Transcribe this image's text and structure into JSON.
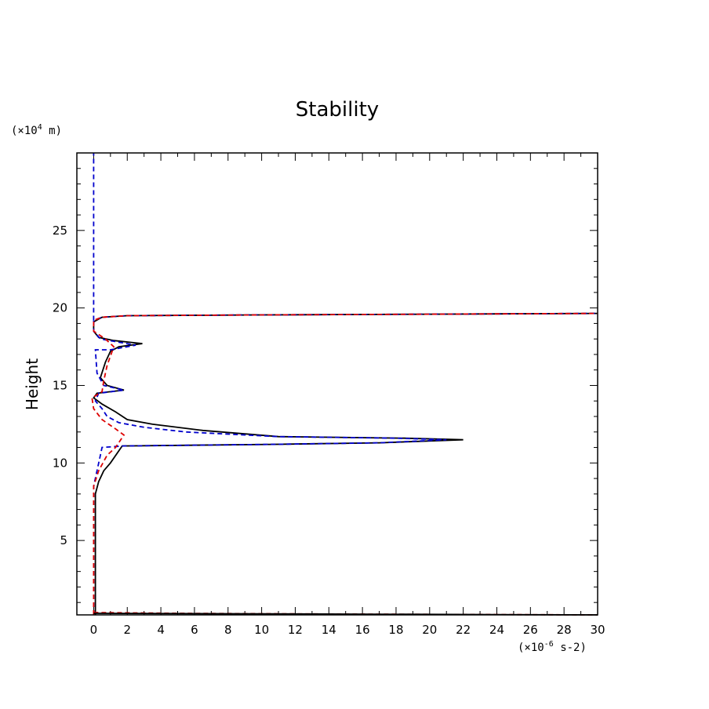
{
  "chart_data": {
    "type": "line",
    "title": "Stability",
    "xlabel": "",
    "ylabel": "Height",
    "x_unit_label": "(×10",
    "x_unit_exp": "-6",
    "x_unit_suffix": " s-2)",
    "y_unit_label": "(×10",
    "y_unit_exp": "4",
    "y_unit_suffix": " m)",
    "xlim": [
      -1,
      30
    ],
    "ylim": [
      0.2,
      30
    ],
    "x_ticks": [
      0,
      2,
      4,
      6,
      8,
      10,
      12,
      14,
      16,
      18,
      20,
      22,
      24,
      26,
      28,
      30
    ],
    "y_ticks": [
      5,
      10,
      15,
      20,
      25
    ],
    "grid": false,
    "colors": {
      "black": "#000000",
      "blue": "#0000cc",
      "red": "#dd0000"
    },
    "series": [
      {
        "color": "#000000",
        "dash": "solid",
        "points": [
          [
            0.1,
            0.2
          ],
          [
            0.1,
            8.0
          ],
          [
            0.3,
            8.8
          ],
          [
            0.6,
            9.5
          ],
          [
            1.0,
            10.0
          ],
          [
            1.7,
            11.1
          ],
          [
            10.5,
            11.2
          ],
          [
            17.0,
            11.3
          ],
          [
            22.0,
            11.5
          ],
          [
            18.5,
            11.6
          ],
          [
            11.0,
            11.7
          ],
          [
            6.5,
            12.1
          ],
          [
            3.5,
            12.5
          ],
          [
            2.0,
            12.8
          ],
          [
            1.3,
            13.3
          ],
          [
            0.5,
            13.8
          ],
          [
            0.0,
            14.2
          ],
          [
            0.2,
            14.5
          ],
          [
            1.8,
            14.7
          ],
          [
            0.8,
            15.0
          ],
          [
            0.4,
            15.5
          ],
          [
            0.7,
            16.5
          ],
          [
            1.0,
            17.2
          ],
          [
            1.5,
            17.5
          ],
          [
            2.9,
            17.7
          ],
          [
            1.2,
            17.9
          ],
          [
            0.3,
            18.1
          ],
          [
            0.0,
            18.5
          ],
          [
            0.0,
            19.1
          ],
          [
            0.5,
            19.4
          ],
          [
            2.0,
            19.5
          ],
          [
            10.0,
            19.55
          ],
          [
            20.0,
            19.6
          ],
          [
            30.0,
            19.65
          ]
        ]
      },
      {
        "color": "#0000cc",
        "dash": "dashed",
        "points": [
          [
            0.0,
            0.2
          ],
          [
            0.0,
            8.5
          ],
          [
            0.2,
            9.5
          ],
          [
            0.4,
            10.5
          ],
          [
            0.5,
            11.0
          ],
          [
            1.8,
            11.1
          ],
          [
            10.5,
            11.2
          ],
          [
            17.0,
            11.3
          ],
          [
            21.0,
            11.5
          ],
          [
            18.0,
            11.6
          ],
          [
            11.0,
            11.7
          ],
          [
            5.5,
            12.0
          ],
          [
            3.0,
            12.3
          ],
          [
            1.5,
            12.6
          ],
          [
            0.8,
            13.0
          ],
          [
            0.5,
            13.5
          ],
          [
            0.1,
            14.0
          ],
          [
            0.3,
            14.5
          ],
          [
            1.8,
            14.7
          ],
          [
            0.6,
            15.0
          ],
          [
            0.2,
            15.8
          ],
          [
            0.1,
            17.3
          ],
          [
            1.0,
            17.3
          ],
          [
            2.5,
            17.6
          ],
          [
            0.4,
            18.0
          ],
          [
            0.0,
            18.5
          ],
          [
            0.0,
            19.2
          ],
          [
            0.5,
            19.4
          ],
          [
            2.0,
            19.5
          ],
          [
            10.0,
            19.55
          ],
          [
            20.0,
            19.6
          ],
          [
            30.0,
            19.65
          ]
        ]
      },
      {
        "color": "#0000cc",
        "dash": "dashed",
        "points": [
          [
            0.0,
            19.2
          ],
          [
            0.0,
            30.0
          ]
        ]
      },
      {
        "color": "#dd0000",
        "dash": "dashed",
        "points": [
          [
            0.0,
            0.2
          ],
          [
            0.0,
            8.5
          ],
          [
            0.3,
            9.5
          ],
          [
            0.8,
            10.5
          ],
          [
            1.3,
            11.0
          ],
          [
            1.8,
            11.8
          ],
          [
            1.3,
            12.2
          ],
          [
            0.5,
            12.8
          ],
          [
            0.0,
            13.5
          ],
          [
            -0.1,
            14.2
          ],
          [
            0.5,
            14.6
          ],
          [
            0.6,
            15.3
          ],
          [
            0.8,
            16.3
          ],
          [
            1.2,
            17.5
          ],
          [
            0.7,
            18.0
          ],
          [
            0.0,
            18.5
          ],
          [
            0.0,
            19.2
          ],
          [
            0.5,
            19.4
          ],
          [
            2.0,
            19.5
          ],
          [
            10.0,
            19.55
          ],
          [
            20.0,
            19.6
          ],
          [
            30.0,
            19.65
          ]
        ]
      },
      {
        "color": "#dd0000",
        "dash": "dashed",
        "points": [
          [
            0.0,
            0.35
          ],
          [
            5.0,
            0.3
          ],
          [
            15.0,
            0.25
          ],
          [
            30.0,
            0.2
          ]
        ]
      },
      {
        "color": "#000000",
        "dash": "solid",
        "points": [
          [
            0.0,
            0.3
          ],
          [
            30.0,
            0.2
          ]
        ]
      }
    ]
  }
}
